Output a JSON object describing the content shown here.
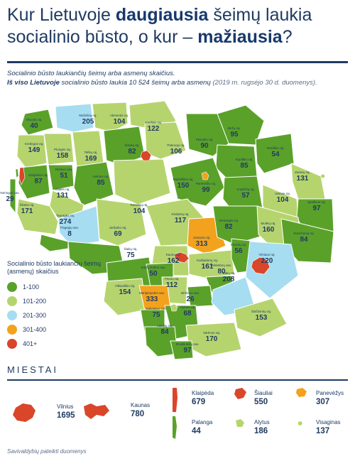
{
  "title": {
    "part1": "Kur Lietuvoje ",
    "bold1": "daugiausia",
    "part2": " šeimų laukia socialinio būsto, o kur – ",
    "bold2": "mažiausia",
    "part3": "?"
  },
  "subtitle": {
    "line1": "Socialinio būsto laukiančių šeimų arba asmenų skaičius.",
    "bold": "Iš viso Lietuvoje",
    "line2": " socialinio būsto laukia 10 524 šeimų arba asmenų",
    "note": " (2019 m. rugsėjo 30 d. duomenys)."
  },
  "colors": {
    "c1": "#5aa12a",
    "c2": "#b6d46e",
    "c3": "#a6ddf0",
    "c4": "#f3a21d",
    "c5": "#d9462a",
    "title": "#1f3b63"
  },
  "legend": {
    "title": "Socialinio būsto laukiančių šeimų (asmenų) skaičius",
    "items": [
      "1-100",
      "101-200",
      "201-300",
      "301-400",
      "401+"
    ]
  },
  "regions": [
    {
      "name": "Skuodo raj.",
      "value": "40"
    },
    {
      "name": "Mažeikių raj.",
      "value": "205"
    },
    {
      "name": "Akmenės raj.",
      "value": "104"
    },
    {
      "name": "Joniškio raj.",
      "value": "122"
    },
    {
      "name": "Pasvalio raj.",
      "value": ""
    },
    {
      "name": "Biržų raj.",
      "value": "95"
    },
    {
      "name": "Kretingos raj.",
      "value": "149"
    },
    {
      "name": "Plungės raj.",
      "value": "158"
    },
    {
      "name": "Telšių raj.",
      "value": "169"
    },
    {
      "name": "Šiaulių raj.",
      "value": "82"
    },
    {
      "name": "Pakruojo raj.",
      "value": "106"
    },
    {
      "name": "Pasvalio raj.",
      "value": "90"
    },
    {
      "name": "Kupiškio raj.",
      "value": "85"
    },
    {
      "name": "Rokiškio raj.",
      "value": "54"
    },
    {
      "name": "Klaipėdos raj.",
      "value": "87"
    },
    {
      "name": "Rietavo sav.",
      "value": "51"
    },
    {
      "name": "Kelmės raj.",
      "value": "85"
    },
    {
      "name": "Radviliškio raj.",
      "value": "150"
    },
    {
      "name": "Panevėžio raj.",
      "value": "99"
    },
    {
      "name": "Anykščių raj.",
      "value": "57"
    },
    {
      "name": "Zarasų raj.",
      "value": "131"
    },
    {
      "name": "Neringos sav.",
      "value": "29"
    },
    {
      "name": "Šilalės raj.",
      "value": "131"
    },
    {
      "name": "Utenos raj.",
      "value": "104"
    },
    {
      "name": "Šilutės raj.",
      "value": "171"
    },
    {
      "name": "Tauragės raj.",
      "value": "274"
    },
    {
      "name": "Raseinių raj.",
      "value": "104"
    },
    {
      "name": "Kėdainių raj.",
      "value": "117"
    },
    {
      "name": "Ignalinos raj.",
      "value": "97"
    },
    {
      "name": "Pagėgių sav.",
      "value": "8"
    },
    {
      "name": "Jurbarko raj.",
      "value": "69"
    },
    {
      "name": "Jonavos raj.",
      "value": "313"
    },
    {
      "name": "Ukmergės raj.",
      "value": "82"
    },
    {
      "name": "Molėtų raj.",
      "value": "160"
    },
    {
      "name": "Švenčionių raj.",
      "value": "84"
    },
    {
      "name": "Šakių raj.",
      "value": "75"
    },
    {
      "name": "Kauno raj.",
      "value": "162"
    },
    {
      "name": "Kaišiadorių raj.",
      "value": "161"
    },
    {
      "name": "Širvintų raj.",
      "value": "56"
    },
    {
      "name": "Vilniaus raj.",
      "value": "220"
    },
    {
      "name": "Kazlų Rūdos sav.",
      "value": "50"
    },
    {
      "name": "Vilkaviškio raj.",
      "value": "154"
    },
    {
      "name": "Prienų raj.",
      "value": "112"
    },
    {
      "name": "Elektrėnų sav.",
      "value": "80"
    },
    {
      "name": "Marijampolės sav.",
      "value": "333"
    },
    {
      "name": "Birštono sav.",
      "value": "26"
    },
    {
      "name": "Trakų raj.",
      "value": "208"
    },
    {
      "name": "Kalvarijos sav.",
      "value": "75"
    },
    {
      "name": "Alytaus raj.",
      "value": "68"
    },
    {
      "name": "Šalčininkų raj.",
      "value": "153"
    },
    {
      "name": "Lazdijų raj.",
      "value": "84"
    },
    {
      "name": "Varėnos raj.",
      "value": "170"
    },
    {
      "name": "Druskininkų sav.",
      "value": "97"
    }
  ],
  "miestai_title": "MIESTAI",
  "cities": [
    {
      "name": "Vilnius",
      "value": "1695"
    },
    {
      "name": "Kaunas",
      "value": "780"
    },
    {
      "name": "Klaipėda",
      "value": "679"
    },
    {
      "name": "Šiauliai",
      "value": "550"
    },
    {
      "name": "Panevėžys",
      "value": "307"
    },
    {
      "name": "Palanga",
      "value": "44"
    },
    {
      "name": "Alytus",
      "value": "186"
    },
    {
      "name": "Visaginas",
      "value": "137"
    }
  ],
  "footer": "Savivaldybių pateikti duomenys"
}
